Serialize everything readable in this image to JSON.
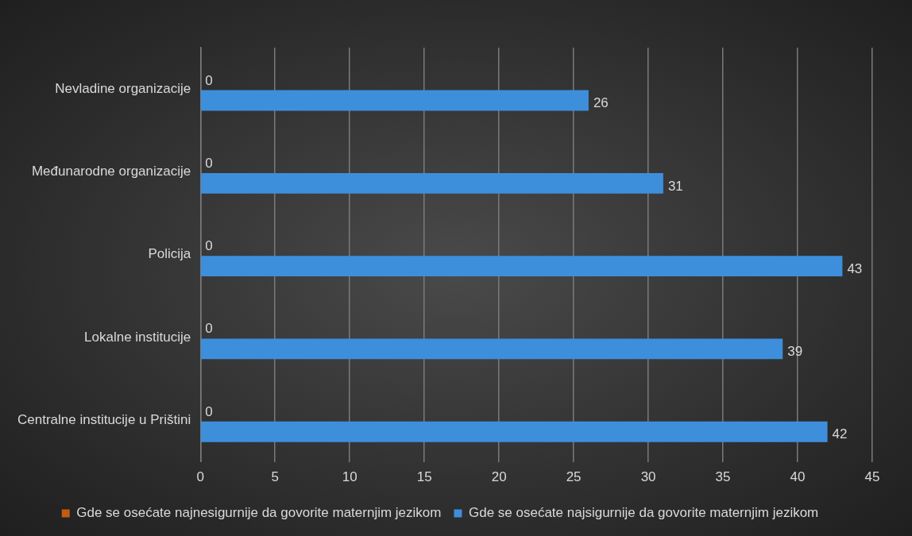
{
  "chart_data": {
    "type": "bar",
    "orientation": "horizontal",
    "categories": [
      "Nevladine organizacije",
      "Međunarodne organizacije",
      "Policija",
      "Lokalne institucije",
      "Centralne institucije u Prištini"
    ],
    "series": [
      {
        "name": "Gde se osećate najnesigurnije da govorite maternjim jezikom",
        "color": "#c55a11",
        "values": [
          0,
          0,
          0,
          0,
          0
        ]
      },
      {
        "name": "Gde se osećate najsigurnije da govorite maternjim jezikom",
        "color": "#3d8fdc",
        "values": [
          26,
          31,
          43,
          39,
          42
        ]
      }
    ],
    "xlim": [
      0,
      45
    ],
    "xticks": [
      0,
      5,
      10,
      15,
      20,
      25,
      30,
      35,
      40,
      45
    ],
    "grid": "x",
    "legend": "bottom",
    "data_labels": true
  }
}
